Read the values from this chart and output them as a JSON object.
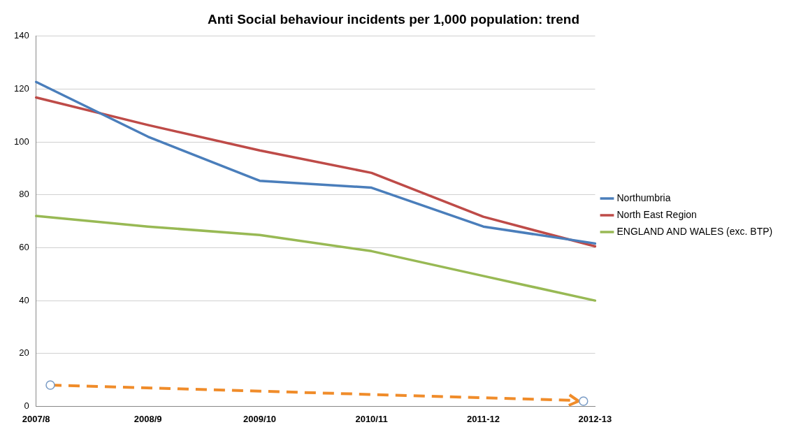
{
  "chart_data": {
    "type": "line",
    "title": "Anti Social behaviour incidents per 1,000 population: trend",
    "categories": [
      "2007/8",
      "2008/9",
      "2009/10",
      "2010/11",
      "2011-12",
      "2012-13"
    ],
    "series": [
      {
        "name": "Northumbria",
        "color": "#4a7ebb",
        "values": [
          122.7,
          102,
          85.3,
          82.7,
          68,
          61.6
        ]
      },
      {
        "name": "North East Region",
        "color": "#be4b48",
        "values": [
          116.8,
          106.4,
          96.8,
          88.3,
          71.7,
          60.5
        ]
      },
      {
        "name": "ENGLAND AND WALES (exc. BTP)",
        "color": "#98b954",
        "values": [
          72,
          68,
          64.8,
          58.7,
          49.3,
          40
        ]
      }
    ],
    "ylim": [
      0,
      140
    ],
    "yticks": [
      0,
      20,
      40,
      60,
      80,
      100,
      120,
      140
    ],
    "grid": "y",
    "legend": "right",
    "marker": "none",
    "line_style": "solid"
  }
}
